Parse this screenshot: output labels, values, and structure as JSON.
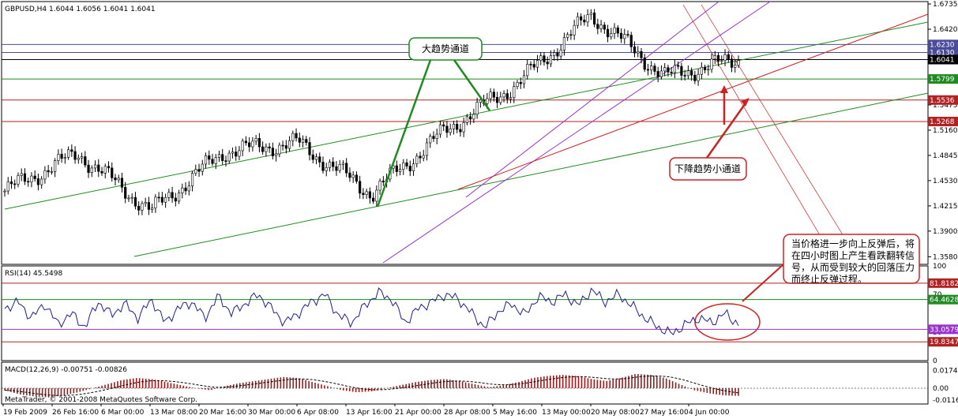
{
  "chart_data": [
    {
      "type": "candlestick",
      "title": "GBPUSD,H4  1.6044 1.6056 1.6041 1.6041",
      "symbol": "GBPUSD",
      "timeframe": "H4",
      "ohlc_last": [
        1.6044,
        1.6056,
        1.6041,
        1.6041
      ],
      "ylim": [
        1.3485,
        1.6765
      ],
      "yticks": [
        "1.6735",
        "1.6420",
        "1.6105",
        "1.5790",
        "1.5475",
        "1.5160",
        "1.4845",
        "1.4530",
        "1.4215",
        "1.3900",
        "1.3580"
      ],
      "x_labels": [
        "19 Feb 2009",
        "26 Feb 16:00",
        "6 Mar 00:00",
        "13 Mar 08:00",
        "20 Mar 16:00",
        "30 Mar 00:00",
        "6 Apr 08:00",
        "13 Apr 16:00",
        "21 Apr 00:00",
        "28 Apr 08:00",
        "5 May 16:00",
        "13 May 00:00",
        "20 May 08:00",
        "27 May 16:00",
        "4 Jun 00:00"
      ],
      "levels": [
        {
          "value": 1.623,
          "label": "1.6230",
          "color": "#4b4b9b"
        },
        {
          "value": 1.613,
          "label": "1.6130",
          "color": "#4b4b9b"
        },
        {
          "value": 1.6041,
          "label": "1.6041",
          "color": "#000000"
        },
        {
          "value": 1.5799,
          "label": "1.5799",
          "color": "#1f8a1f"
        },
        {
          "value": 1.5536,
          "label": "1.5536",
          "color": "#b22222"
        },
        {
          "value": 1.5268,
          "label": "1.5268",
          "color": "#b22222"
        }
      ],
      "key_points": [
        {
          "date": "19 Feb 2009",
          "price": 1.44
        },
        {
          "date": "20 Mar 16:00",
          "price": 1.487
        },
        {
          "date": "30 Mar 00:00",
          "price": 1.415
        },
        {
          "date": "6 Apr 08:00",
          "price": 1.49
        },
        {
          "date": "13 Apr 16:00",
          "price": 1.5
        },
        {
          "date": "21 Apr 00:00",
          "price": 1.437
        },
        {
          "date": "5 May 16:00",
          "price": 1.515
        },
        {
          "date": "20 May 08:00",
          "price": 1.575
        },
        {
          "date": "27 May 16:00",
          "price": 1.66
        },
        {
          "date": "4 Jun 00:00",
          "price": 1.583
        },
        {
          "date": "4 Jun 00:00",
          "price": 1.6041
        }
      ],
      "annotations": [
        "大趋势通道",
        "下降趋势小通道",
        "当价格进一步向上反弹后，将在四小时图上产生看跌翻转信号，从而受到较大的回落压力而终止反弹过程。"
      ],
      "colors": {
        "bull_candle": "#ffffff",
        "bear_candle": "#000000",
        "channel_main": "#1f8a1f",
        "channel_sub": "#9932cc",
        "trend_red": "#cc2222",
        "annotation_green": "#1f8a1f",
        "annotation_red": "#cc2222"
      }
    },
    {
      "type": "line",
      "title": "RSI(14) 45.5498",
      "ylim": [
        0,
        100
      ],
      "yticks": [
        "100",
        "70",
        "30",
        "0"
      ],
      "levels": [
        {
          "value": 81.8182,
          "label": "81.8182",
          "color": "#b22222"
        },
        {
          "value": 64.4628,
          "label": "64.4628",
          "color": "#1f8a1f"
        },
        {
          "value": 33.0579,
          "label": "33.0579",
          "color": "#9932cc"
        },
        {
          "value": 19.8347,
          "label": "19.8347",
          "color": "#b22222"
        }
      ],
      "last": 45.5498,
      "series": [
        {
          "values": [
            55,
            62,
            45,
            60,
            38,
            50,
            35,
            62,
            48,
            60,
            45,
            65,
            40,
            55,
            62,
            45,
            68,
            50,
            60,
            70,
            55,
            40,
            50,
            62,
            70,
            48,
            40,
            58,
            72,
            65,
            40,
            55,
            62,
            70,
            65,
            50,
            35,
            52,
            60,
            48,
            68,
            62,
            70,
            58,
            75,
            62,
            70,
            58,
            45,
            35,
            28,
            38,
            45,
            40,
            50,
            38
          ]
        }
      ]
    },
    {
      "type": "bar",
      "title": "MACD(12,26,9) -0.00751 -0.00826",
      "yticks": [
        "0.0174",
        "0.00",
        "-0.01166"
      ],
      "last_macd": -0.00751,
      "last_signal": -0.00826,
      "series": [
        {
          "values": [
            -0.002,
            -0.006,
            -0.008,
            -0.009,
            -0.007,
            -0.004,
            0.0,
            0.004,
            0.008,
            0.01,
            0.009,
            0.006,
            0.003,
            0.0,
            -0.002,
            0.002,
            0.005,
            0.007,
            0.009,
            0.011,
            0.01,
            0.006,
            0.002,
            -0.002,
            -0.004,
            -0.003,
            0.0,
            0.003,
            0.006,
            0.008,
            0.009,
            0.007,
            0.004,
            0.001,
            0.003,
            0.006,
            0.01,
            0.012,
            0.013,
            0.012,
            0.009,
            0.007,
            0.01,
            0.014,
            0.013,
            0.01,
            0.004,
            -0.002,
            -0.005,
            -0.007,
            -0.0075
          ]
        }
      ]
    }
  ],
  "footer": {
    "copyright": "MetaTrader, © 2001-2008 MetaQuotes Software Corp."
  }
}
